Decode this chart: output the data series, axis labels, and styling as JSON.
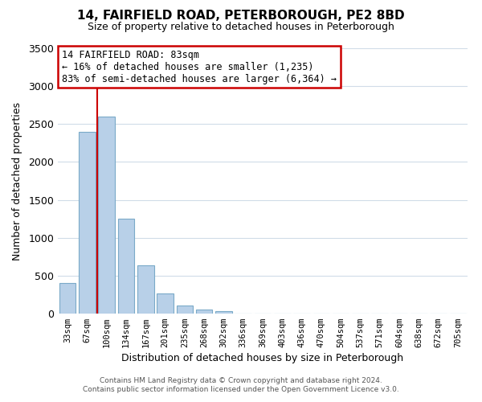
{
  "title_line1": "14, FAIRFIELD ROAD, PETERBOROUGH, PE2 8BD",
  "title_line2": "Size of property relative to detached houses in Peterborough",
  "xlabel": "Distribution of detached houses by size in Peterborough",
  "ylabel": "Number of detached properties",
  "bar_labels": [
    "33sqm",
    "67sqm",
    "100sqm",
    "134sqm",
    "167sqm",
    "201sqm",
    "235sqm",
    "268sqm",
    "302sqm",
    "336sqm",
    "369sqm",
    "403sqm",
    "436sqm",
    "470sqm",
    "504sqm",
    "537sqm",
    "571sqm",
    "604sqm",
    "638sqm",
    "672sqm",
    "705sqm"
  ],
  "bar_values": [
    400,
    2400,
    2600,
    1250,
    640,
    260,
    105,
    50,
    30,
    0,
    0,
    0,
    0,
    0,
    0,
    0,
    0,
    0,
    0,
    0,
    0
  ],
  "bar_color": "#b8d0e8",
  "bar_edge_color": "#7aaac8",
  "vline_x": 1.5,
  "ylim": [
    0,
    3500
  ],
  "yticks": [
    0,
    500,
    1000,
    1500,
    2000,
    2500,
    3000,
    3500
  ],
  "annotation_title": "14 FAIRFIELD ROAD: 83sqm",
  "annotation_line1": "← 16% of detached houses are smaller (1,235)",
  "annotation_line2": "83% of semi-detached houses are larger (6,364) →",
  "annotation_box_color": "#ffffff",
  "annotation_box_edge_color": "#cc0000",
  "vline_color": "#cc0000",
  "footer_line1": "Contains HM Land Registry data © Crown copyright and database right 2024.",
  "footer_line2": "Contains public sector information licensed under the Open Government Licence v3.0.",
  "background_color": "#ffffff",
  "grid_color": "#d0dce8",
  "title_fontsize": 11,
  "subtitle_fontsize": 9,
  "ylabel_text": "Number of detached properties"
}
